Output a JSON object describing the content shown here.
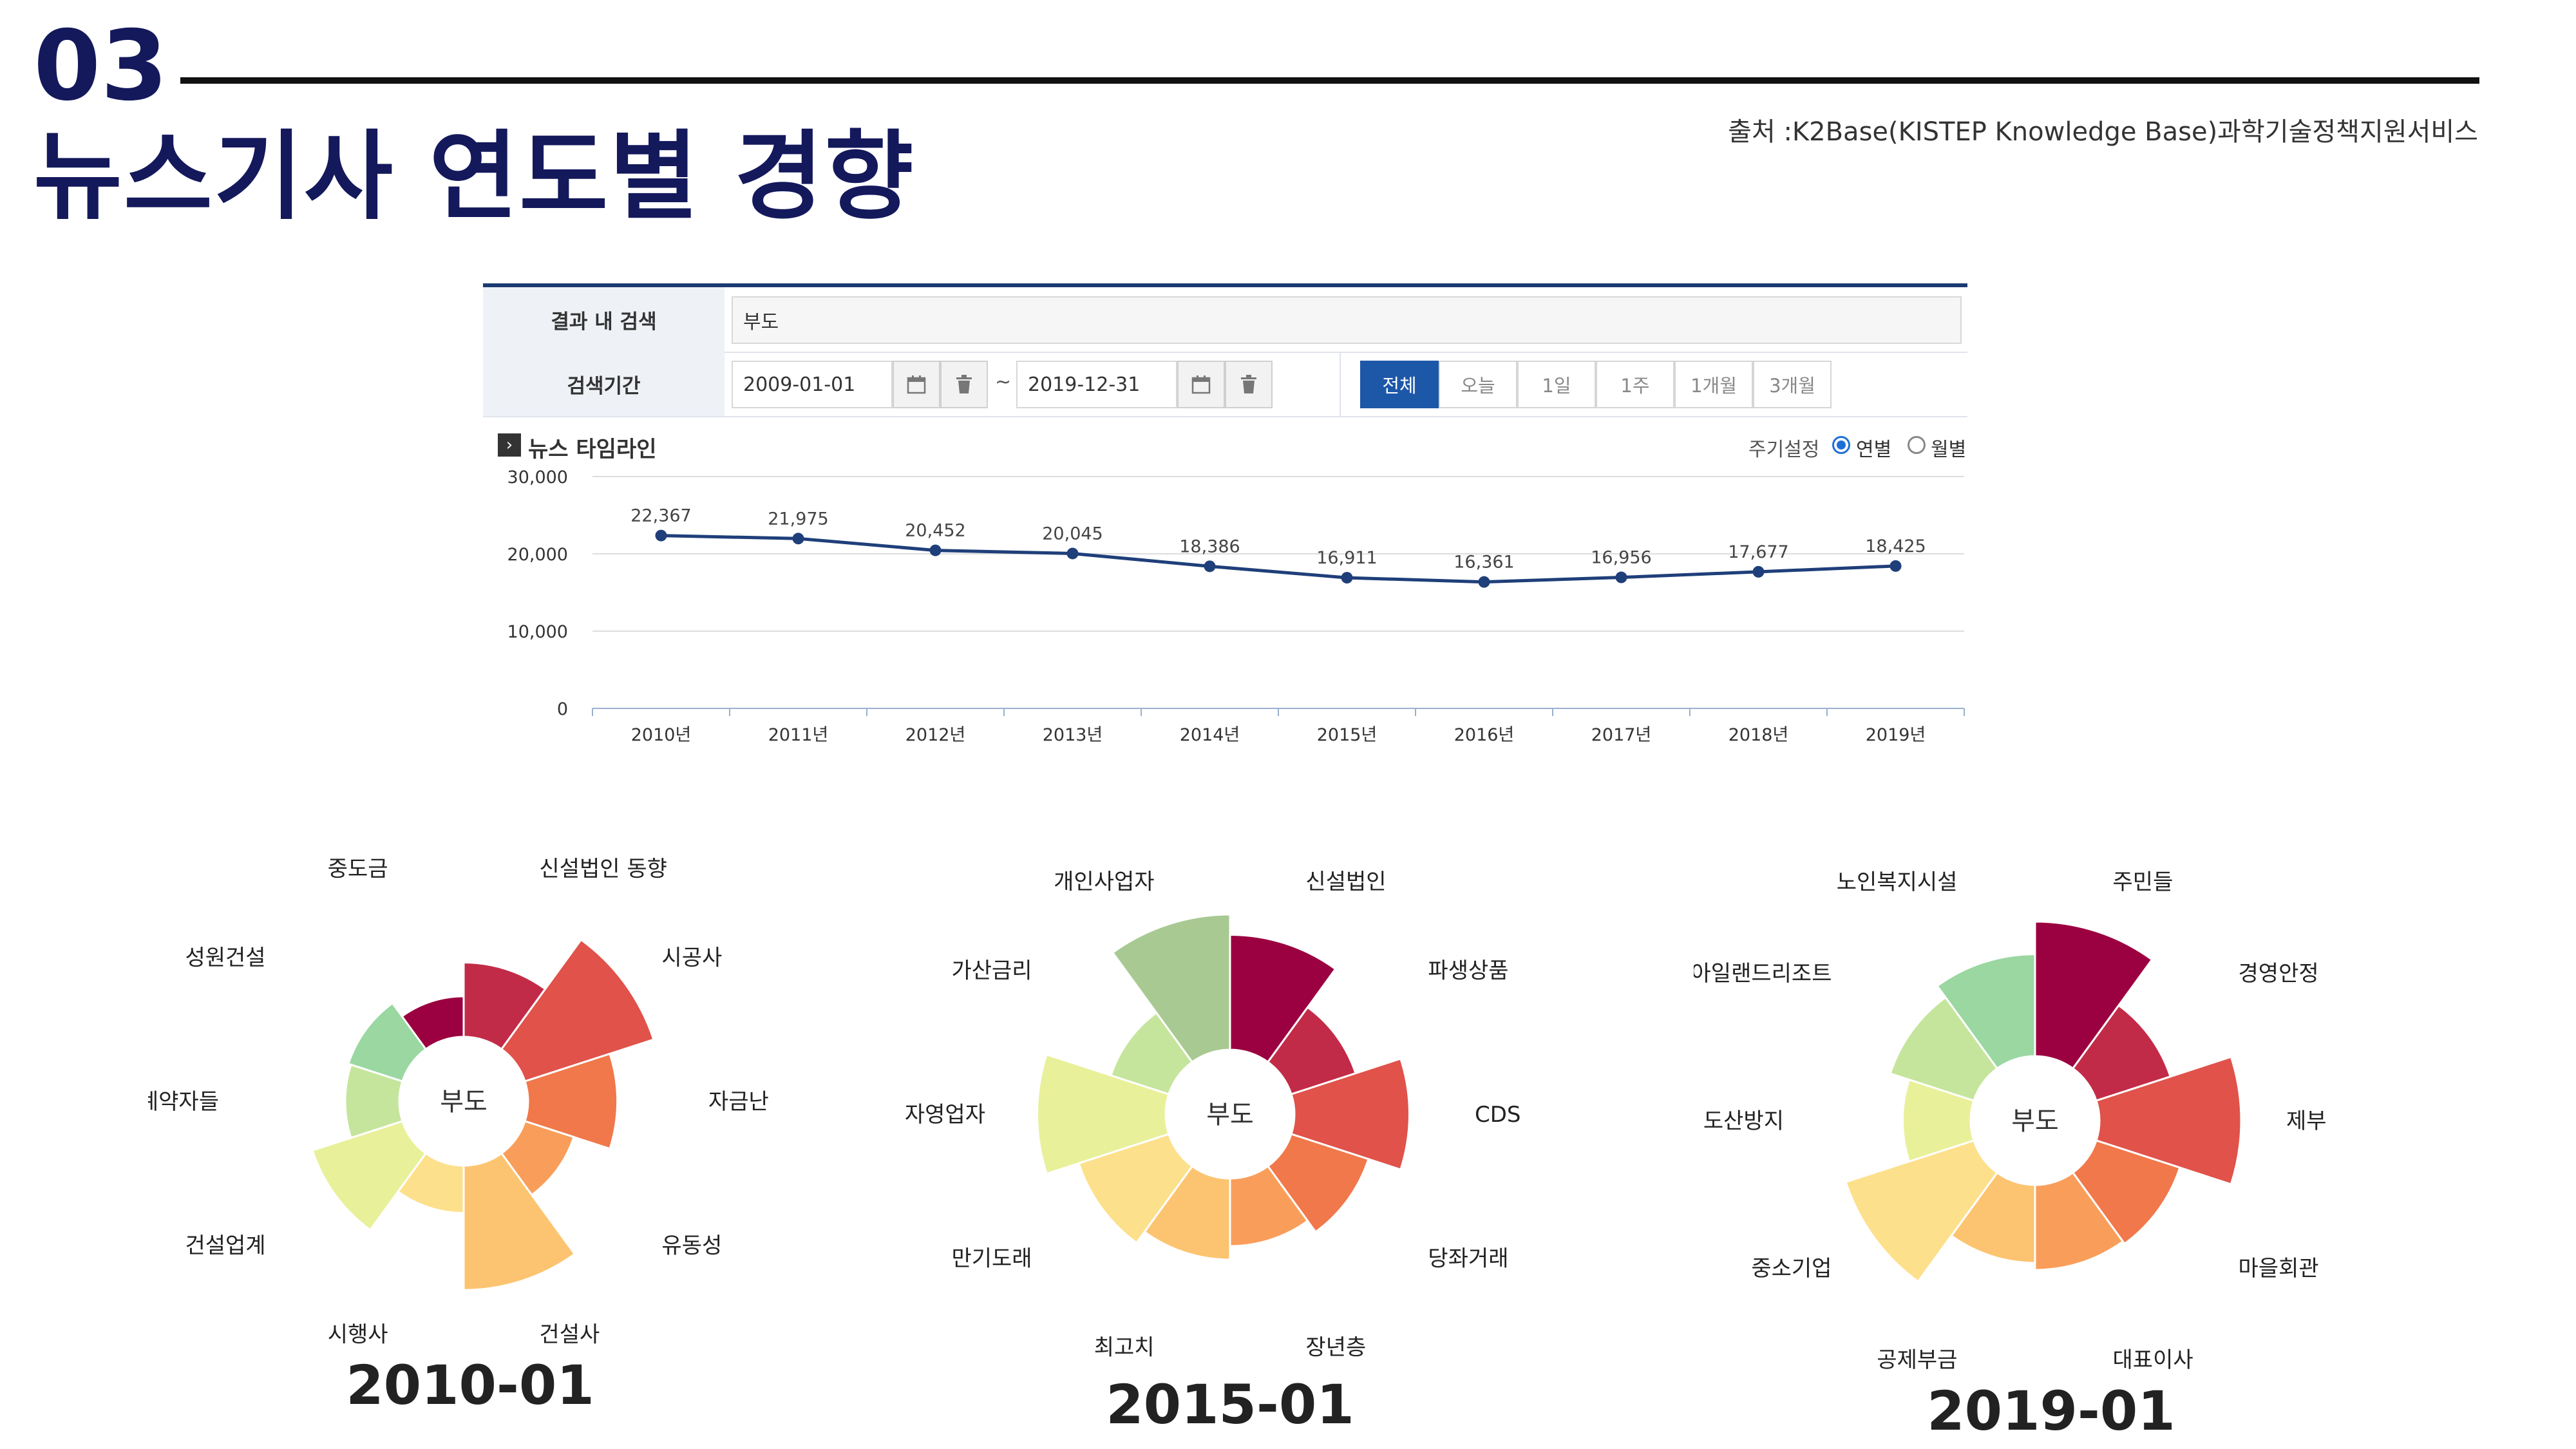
{
  "slide": {
    "number": "03",
    "title": "뉴스기사 연도별 경향",
    "source": "출처 :K2Base(KISTEP Knowledge Base)과학기술정책지원서비스"
  },
  "search": {
    "result_label": "결과 내 검색",
    "result_value": "부도",
    "period_label": "검색기간",
    "date_from": "2009-01-01",
    "date_to": "2019-12-31",
    "tilde": "~",
    "calendar_icon": "calendar-icon",
    "delete_icon": "trash-icon",
    "range_buttons": [
      "전체",
      "오늘",
      "1일",
      "1주",
      "1개월",
      "3개월"
    ],
    "active_range": "전체"
  },
  "timeline": {
    "heading": "뉴스 타임라인",
    "period_setting_label": "주기설정",
    "options": [
      "연별",
      "월별"
    ],
    "selected": "연별"
  },
  "chart_data": [
    {
      "type": "line",
      "title": "뉴스 타임라인",
      "x": [
        "2010년",
        "2011년",
        "2012년",
        "2013년",
        "2014년",
        "2015년",
        "2016년",
        "2017년",
        "2018년",
        "2019년"
      ],
      "values": [
        22367,
        21975,
        20452,
        20045,
        18386,
        16911,
        16361,
        16956,
        17677,
        18425
      ],
      "value_labels": [
        "22,367",
        "21,975",
        "20,452",
        "20,045",
        "18,386",
        "16,911",
        "16,361",
        "16,956",
        "17,677",
        "18,425"
      ],
      "ylim": [
        0,
        30000
      ],
      "yticks": [
        0,
        10000,
        20000,
        30000
      ],
      "ytick_labels": [
        "0",
        "10,000",
        "20,000",
        "30,000"
      ],
      "grid": true,
      "color": "#1f3f7a"
    },
    {
      "type": "pie",
      "variant": "rose",
      "title": "2010-01",
      "center": "부도",
      "categories": [
        {
          "label": "신설법인 동향",
          "value": 0.55,
          "color": "#c22b47"
        },
        {
          "label": "시공사",
          "value": 1.0,
          "color": "#e0524a"
        },
        {
          "label": "자금난",
          "value": 0.66,
          "color": "#f0784a"
        },
        {
          "label": "유동성",
          "value": 0.38,
          "color": "#f99e5a"
        },
        {
          "label": "건설사",
          "value": 0.92,
          "color": "#fcc470"
        },
        {
          "label": "시행사",
          "value": 0.35,
          "color": "#fde08b"
        },
        {
          "label": "건설업계",
          "value": 0.7,
          "color": "#e9f09a"
        },
        {
          "label": "계약자들",
          "value": 0.4,
          "color": "#c5e59c"
        },
        {
          "label": "성원건설",
          "value": 0.42,
          "color": "#9ad7a1"
        },
        {
          "label": "중도금",
          "value": 0.3,
          "color": "#9b0040"
        }
      ]
    },
    {
      "type": "pie",
      "variant": "rose",
      "title": "2015-01",
      "center": "부도",
      "categories": [
        {
          "label": "신설법인",
          "value": 0.85,
          "color": "#9b0040"
        },
        {
          "label": "파생상품",
          "value": 0.5,
          "color": "#c22b47"
        },
        {
          "label": "CDS",
          "value": 0.85,
          "color": "#e0524a"
        },
        {
          "label": "당좌거래",
          "value": 0.6,
          "color": "#f0784a"
        },
        {
          "label": "장년층",
          "value": 0.5,
          "color": "#f99e5a"
        },
        {
          "label": "최고치",
          "value": 0.6,
          "color": "#fcc470"
        },
        {
          "label": "만기도래",
          "value": 0.7,
          "color": "#fde08b"
        },
        {
          "label": "자영업자",
          "value": 0.95,
          "color": "#e9f09a"
        },
        {
          "label": "가산금리",
          "value": 0.45,
          "color": "#c5e59c"
        },
        {
          "label": "개인사업자",
          "value": 1.0,
          "color": "#a8c992"
        }
      ]
    },
    {
      "type": "pie",
      "variant": "rose",
      "title": "2019-01",
      "center": "부도",
      "categories": [
        {
          "label": "주민들",
          "value": 0.95,
          "color": "#9b0040"
        },
        {
          "label": "경영안정",
          "value": 0.55,
          "color": "#c22b47"
        },
        {
          "label": "제부",
          "value": 1.0,
          "color": "#e0524a"
        },
        {
          "label": "마을회관",
          "value": 0.62,
          "color": "#f0784a"
        },
        {
          "label": "대표이사",
          "value": 0.6,
          "color": "#f99e5a"
        },
        {
          "label": "공제부금",
          "value": 0.55,
          "color": "#fcc470"
        },
        {
          "label": "중소기업",
          "value": 0.95,
          "color": "#fde08b"
        },
        {
          "label": "도산방지",
          "value": 0.48,
          "color": "#e9f09a"
        },
        {
          "label": "아일랜드리조트",
          "value": 0.62,
          "color": "#c5e59c"
        },
        {
          "label": "노인복지시설",
          "value": 0.72,
          "color": "#9ad7a1"
        }
      ]
    }
  ]
}
